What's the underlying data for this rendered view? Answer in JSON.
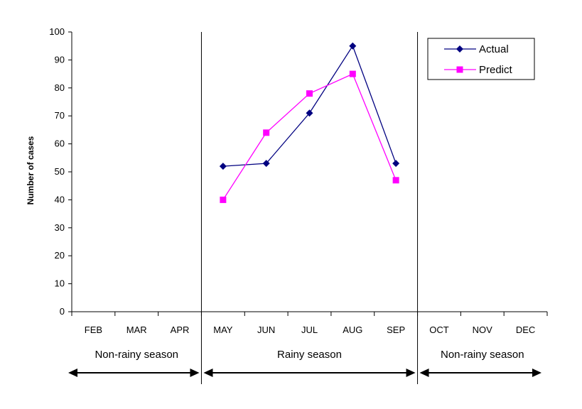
{
  "chart_data": {
    "type": "line",
    "ylabel": "Number of cases",
    "xlabel": "",
    "ylim": [
      0,
      100
    ],
    "yticks": [
      0,
      10,
      20,
      30,
      40,
      50,
      60,
      70,
      80,
      90,
      100
    ],
    "categories": [
      "FEB",
      "MAR",
      "APR",
      "MAY",
      "JUN",
      "JUL",
      "AUG",
      "SEP",
      "OCT",
      "NOV",
      "DEC"
    ],
    "series": [
      {
        "name": "Actual",
        "color": "#000080",
        "marker": "diamond",
        "values": [
          null,
          null,
          null,
          52,
          53,
          71,
          95,
          53,
          null,
          null,
          null
        ]
      },
      {
        "name": "Predict",
        "color": "#ff00ff",
        "marker": "square",
        "values": [
          null,
          null,
          null,
          40,
          64,
          78,
          85,
          47,
          null,
          null,
          null
        ]
      }
    ],
    "seasons": [
      {
        "label": "Non-rainy season",
        "from": "FEB",
        "to": "APR"
      },
      {
        "label": "Rainy season",
        "from": "MAY",
        "to": "SEP"
      },
      {
        "label": "Non-rainy season",
        "from": "OCT",
        "to": "DEC"
      }
    ],
    "legend": {
      "position": "top-right"
    },
    "grid": false
  }
}
